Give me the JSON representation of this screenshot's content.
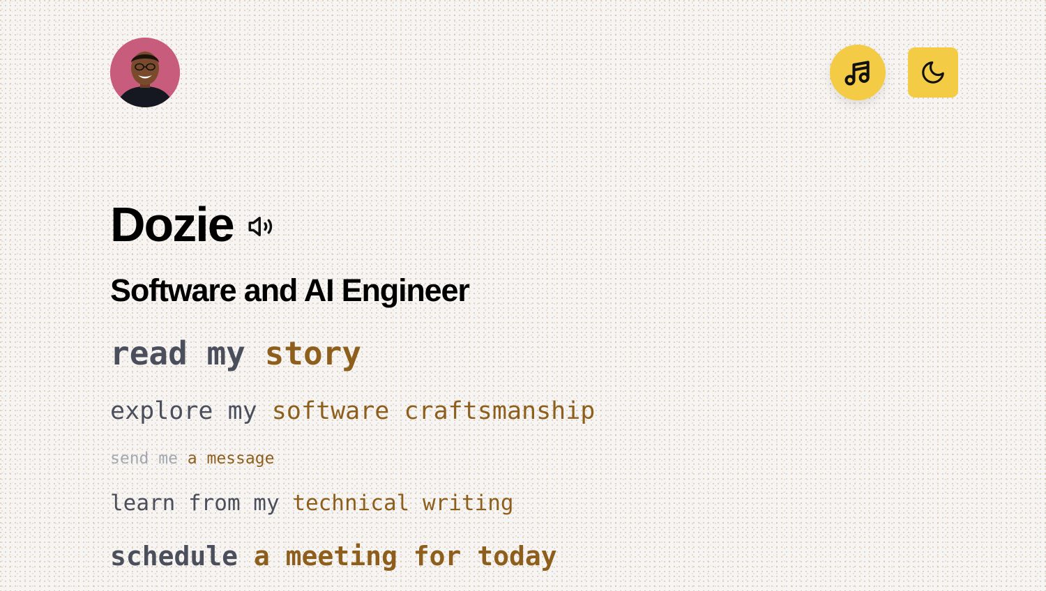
{
  "header": {
    "avatar_alt": "Profile photo of Dozie",
    "music_button": {
      "icon": "music-note-icon",
      "color": "#f4cb45"
    },
    "theme_button": {
      "icon": "moon-icon",
      "color": "#f4cb45"
    }
  },
  "hero": {
    "name": "Dozie",
    "pronounce_icon": "speaker-icon",
    "role": "Software and AI Engineer"
  },
  "links": [
    {
      "prefix": "read my",
      "accent": "story"
    },
    {
      "prefix": "explore my",
      "accent": "software craftsmanship"
    },
    {
      "prefix": "send me",
      "accent": "a message"
    },
    {
      "prefix": "learn from my",
      "accent": "technical writing"
    },
    {
      "prefix": "schedule",
      "accent": "a meeting for today"
    }
  ],
  "colors": {
    "accent": "#8e5f1c",
    "muted": "#4b4f5c",
    "button": "#f4cb45"
  }
}
